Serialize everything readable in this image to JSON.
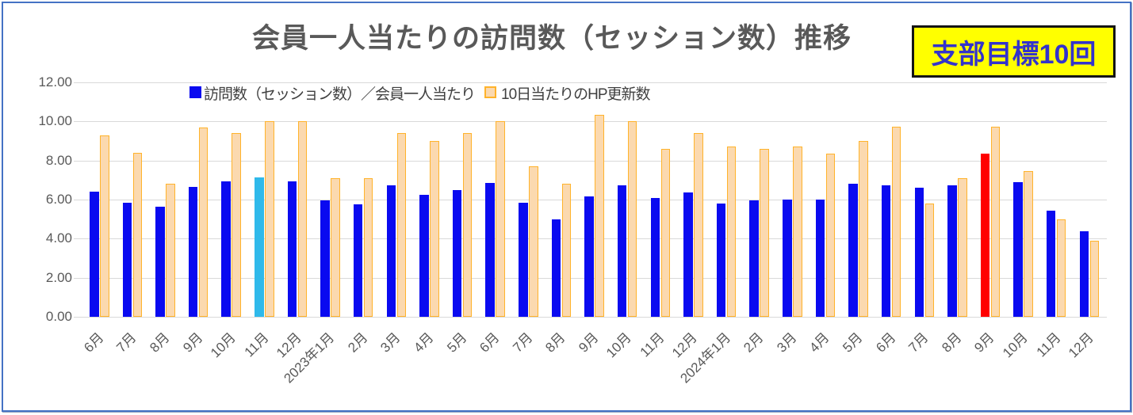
{
  "title": "会員一人当たりの訪問数（セッション数）推移",
  "badge": "支部目標10回",
  "legend": {
    "visits": {
      "label": "訪問数（セッション数）／会員一人当たり",
      "color": "#0A0AF0"
    },
    "hp": {
      "label": "10日当たりのHP更新数",
      "fill": "#FBD9AF",
      "border": "#FFB32B"
    }
  },
  "colors": {
    "bar_blue": "#0A0AF0",
    "bar_cyan": "#2FB9EA",
    "bar_red": "#FF0000",
    "bar_orange_fill": "#FBD9AF",
    "bar_orange_border": "#FFB32B",
    "gridline": "#D9D9D9",
    "axis_text": "#595959",
    "border": "#4472C4",
    "badge_bg": "#FFFF00",
    "badge_text": "#3333CC"
  },
  "chart_data": {
    "type": "bar",
    "title": "会員一人当たりの訪問数（セッション数）推移",
    "categories": [
      "6月",
      "7月",
      "8月",
      "9月",
      "10月",
      "11月",
      "12月",
      "2023年1月",
      "2月",
      "3月",
      "4月",
      "5月",
      "6月",
      "7月",
      "8月",
      "9月",
      "10月",
      "11月",
      "12月",
      "2024年1月",
      "2月",
      "3月",
      "4月",
      "5月",
      "6月",
      "7月",
      "8月",
      "9月",
      "10月",
      "11月",
      "12月"
    ],
    "series": [
      {
        "name": "訪問数（セッション数）／会員一人当たり",
        "values": [
          6.4,
          5.85,
          5.65,
          6.65,
          6.95,
          7.15,
          6.95,
          5.95,
          5.75,
          6.75,
          6.25,
          6.5,
          6.85,
          5.85,
          5.0,
          6.15,
          6.75,
          6.1,
          6.35,
          5.8,
          5.95,
          6.0,
          6.0,
          6.8,
          6.75,
          6.6,
          6.75,
          8.35,
          6.9,
          5.45,
          4.4
        ],
        "highlights": {
          "5": "#2FB9EA",
          "27": "#FF0000"
        }
      },
      {
        "name": "10日当たりのHP更新数",
        "values": [
          9.3,
          8.4,
          6.8,
          9.7,
          9.4,
          10.0,
          10.0,
          7.1,
          7.1,
          9.4,
          9.0,
          9.4,
          10.0,
          7.7,
          6.8,
          10.35,
          10.0,
          8.6,
          9.4,
          8.7,
          8.6,
          8.7,
          8.35,
          9.0,
          9.75,
          5.8,
          7.1,
          9.75,
          7.45,
          5.0,
          3.9
        ]
      }
    ],
    "ylim": [
      0,
      12
    ],
    "yticks": [
      "0.00",
      "2.00",
      "4.00",
      "6.00",
      "8.00",
      "10.00",
      "12.00"
    ],
    "grid": true,
    "legend_position": "top"
  }
}
